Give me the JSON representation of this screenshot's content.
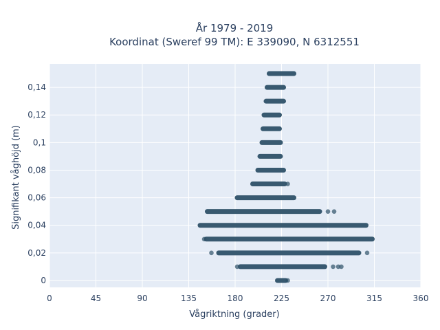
{
  "chart_data": {
    "type": "scatter",
    "title_lines": [
      "År 1979 - 2019",
      "Koordinat (Sweref 99 TM): E 339090, N 6312551"
    ],
    "xlabel": "Vågriktning (grader)",
    "ylabel": "Signifikant våghöjd (m)",
    "xlim": [
      0,
      360
    ],
    "ylim": [
      -0.005,
      0.157
    ],
    "x_ticks": [
      0,
      45,
      90,
      135,
      180,
      225,
      270,
      315,
      360
    ],
    "x_tick_labels": [
      "0",
      "45",
      "90",
      "135",
      "180",
      "225",
      "270",
      "315",
      "360"
    ],
    "y_ticks": [
      0,
      0.02,
      0.04,
      0.06,
      0.08,
      0.1,
      0.12,
      0.14
    ],
    "y_tick_labels": [
      "0",
      "0,02",
      "0,04",
      "0,06",
      "0,08",
      "0,1",
      "0,12",
      "0,14"
    ],
    "grid": true,
    "marker_color": "#2e5168",
    "bands": [
      {
        "y": 0.0,
        "x_min": 221,
        "x_max": 229,
        "outliers": [
          231
        ]
      },
      {
        "y": 0.01,
        "x_min": 185,
        "x_max": 267,
        "outliers": [
          182,
          275,
          280,
          283
        ]
      },
      {
        "y": 0.02,
        "x_min": 164,
        "x_max": 300,
        "outliers": [
          157,
          308
        ]
      },
      {
        "y": 0.03,
        "x_min": 152,
        "x_max": 313,
        "outliers": [
          150
        ]
      },
      {
        "y": 0.04,
        "x_min": 146,
        "x_max": 307,
        "outliers": []
      },
      {
        "y": 0.05,
        "x_min": 153,
        "x_max": 262,
        "outliers": [
          270,
          276
        ]
      },
      {
        "y": 0.06,
        "x_min": 182,
        "x_max": 237,
        "outliers": []
      },
      {
        "y": 0.07,
        "x_min": 197,
        "x_max": 228,
        "outliers": [
          231
        ]
      },
      {
        "y": 0.08,
        "x_min": 202,
        "x_max": 227,
        "outliers": []
      },
      {
        "y": 0.09,
        "x_min": 204,
        "x_max": 224,
        "outliers": []
      },
      {
        "y": 0.1,
        "x_min": 206,
        "x_max": 224,
        "outliers": []
      },
      {
        "y": 0.11,
        "x_min": 207,
        "x_max": 223,
        "outliers": []
      },
      {
        "y": 0.12,
        "x_min": 208,
        "x_max": 223,
        "outliers": []
      },
      {
        "y": 0.13,
        "x_min": 210,
        "x_max": 227,
        "outliers": []
      },
      {
        "y": 0.14,
        "x_min": 211,
        "x_max": 227,
        "outliers": []
      },
      {
        "y": 0.15,
        "x_min": 213,
        "x_max": 237,
        "outliers": []
      }
    ]
  }
}
